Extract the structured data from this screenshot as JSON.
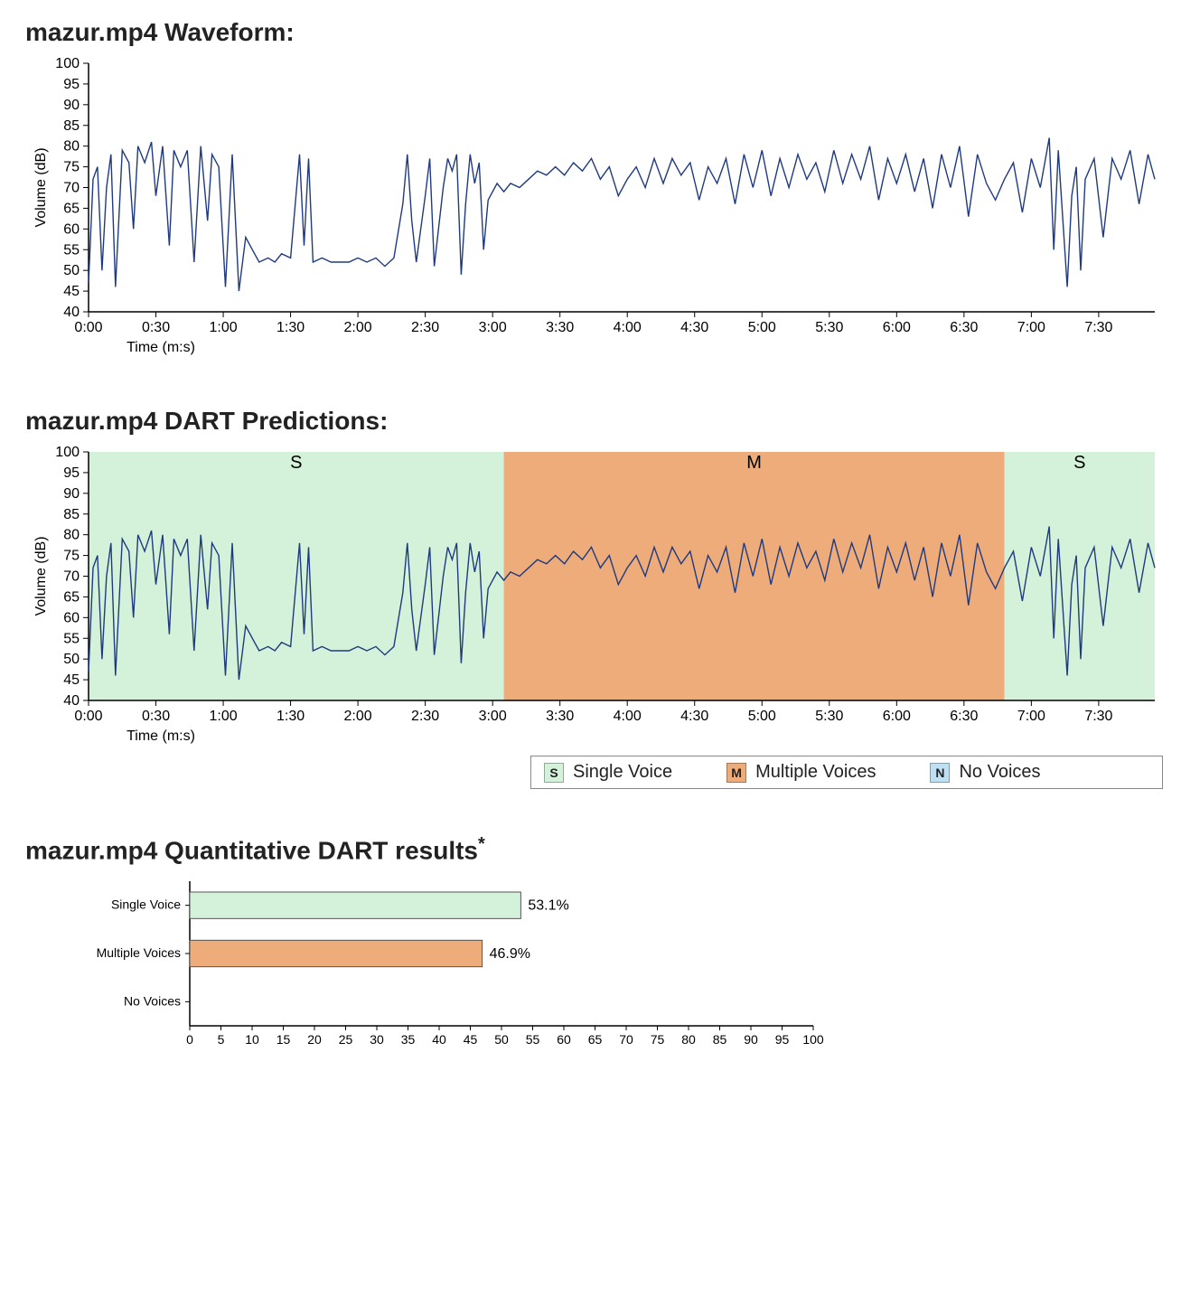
{
  "waveform_chart": {
    "title": "mazur.mp4 Waveform:",
    "type": "line",
    "ylabel": "Volume (dB)",
    "xlabel": "Time (m:s)",
    "ylim": [
      40,
      100
    ],
    "ytick_step": 5,
    "xlim_sec": [
      0,
      475
    ],
    "xticks_sec": [
      0,
      30,
      60,
      90,
      120,
      150,
      180,
      210,
      240,
      270,
      300,
      330,
      360,
      390,
      420,
      450
    ],
    "xtick_labels": [
      "0:00",
      "0:30",
      "1:00",
      "1:30",
      "2:00",
      "2:30",
      "3:00",
      "3:30",
      "4:00",
      "4:30",
      "5:00",
      "5:30",
      "6:00",
      "6:30",
      "7:00",
      "7:30"
    ],
    "line_color": "#1f3a80",
    "line_width": 1.4,
    "axis_color": "#000000",
    "tick_fontsize": 16,
    "label_fontsize": 16,
    "title_fontsize": 28,
    "background_color": "#ffffff"
  },
  "predictions_chart": {
    "title": "mazur.mp4 DART Predictions:",
    "type": "line",
    "ylabel": "Volume (dB)",
    "xlabel": "Time (m:s)",
    "ylim": [
      40,
      100
    ],
    "ytick_step": 5,
    "xlim_sec": [
      0,
      475
    ],
    "xticks_sec": [
      0,
      30,
      60,
      90,
      120,
      150,
      180,
      210,
      240,
      270,
      300,
      330,
      360,
      390,
      420,
      450
    ],
    "xtick_labels": [
      "0:00",
      "0:30",
      "1:00",
      "1:30",
      "2:00",
      "2:30",
      "3:00",
      "3:30",
      "4:00",
      "4:30",
      "5:00",
      "5:30",
      "6:00",
      "6:30",
      "7:00",
      "7:30"
    ],
    "line_color": "#1f3a80",
    "line_width": 1.4,
    "axis_color": "#000000",
    "tick_fontsize": 16,
    "label_fontsize": 16,
    "title_fontsize": 28,
    "background_color": "#ffffff",
    "regions": [
      {
        "label": "S",
        "start_sec": 0,
        "end_sec": 185,
        "fill": "#d4f2d9",
        "text_color": "#000"
      },
      {
        "label": "M",
        "start_sec": 185,
        "end_sec": 408,
        "fill": "#edac7a",
        "text_color": "#000"
      },
      {
        "label": "S",
        "start_sec": 408,
        "end_sec": 475,
        "fill": "#d4f2d9",
        "text_color": "#000"
      }
    ],
    "legend": {
      "items": [
        {
          "swatch_bg": "#d4f2d9",
          "swatch_text": "S",
          "label": "Single Voice"
        },
        {
          "swatch_bg": "#edac7a",
          "swatch_text": "M",
          "label": "Multiple Voices"
        },
        {
          "swatch_bg": "#bfe0f2",
          "swatch_text": "N",
          "label": "No Voices"
        }
      ],
      "border_color": "#888888",
      "fontsize": 20
    }
  },
  "bar_chart": {
    "title": "mazur.mp4 Quantitative DART results",
    "title_sup": "*",
    "type": "bar-horizontal",
    "categories": [
      "Single Voice",
      "Multiple Voices",
      "No Voices"
    ],
    "values": [
      53.1,
      46.9,
      0
    ],
    "value_labels": [
      "53.1%",
      "46.9%",
      ""
    ],
    "bar_colors": [
      "#d4f2d9",
      "#edac7a",
      "#bfe0f2"
    ],
    "bar_border": "#555555",
    "xlim": [
      0,
      100
    ],
    "xtick_step": 5,
    "category_fontsize": 14,
    "tick_fontsize": 14,
    "title_fontsize": 28,
    "value_label_fontsize": 16,
    "bar_height_ratio": 0.55,
    "axis_color": "#000000",
    "background_color": "#ffffff"
  },
  "waveform_data_sec_db": [
    [
      0,
      47
    ],
    [
      2,
      72
    ],
    [
      4,
      75
    ],
    [
      6,
      50
    ],
    [
      8,
      70
    ],
    [
      10,
      78
    ],
    [
      12,
      46
    ],
    [
      15,
      79
    ],
    [
      18,
      76
    ],
    [
      20,
      60
    ],
    [
      22,
      80
    ],
    [
      25,
      76
    ],
    [
      28,
      81
    ],
    [
      30,
      68
    ],
    [
      33,
      80
    ],
    [
      36,
      56
    ],
    [
      38,
      79
    ],
    [
      41,
      75
    ],
    [
      44,
      79
    ],
    [
      47,
      52
    ],
    [
      50,
      80
    ],
    [
      53,
      62
    ],
    [
      55,
      78
    ],
    [
      58,
      75
    ],
    [
      61,
      46
    ],
    [
      64,
      78
    ],
    [
      67,
      45
    ],
    [
      70,
      58
    ],
    [
      73,
      55
    ],
    [
      76,
      52
    ],
    [
      80,
      53
    ],
    [
      83,
      52
    ],
    [
      86,
      54
    ],
    [
      90,
      53
    ],
    [
      94,
      78
    ],
    [
      96,
      56
    ],
    [
      98,
      77
    ],
    [
      100,
      52
    ],
    [
      104,
      53
    ],
    [
      108,
      52
    ],
    [
      112,
      52
    ],
    [
      116,
      52
    ],
    [
      120,
      53
    ],
    [
      124,
      52
    ],
    [
      128,
      53
    ],
    [
      132,
      51
    ],
    [
      136,
      53
    ],
    [
      140,
      66
    ],
    [
      142,
      78
    ],
    [
      144,
      62
    ],
    [
      146,
      52
    ],
    [
      150,
      68
    ],
    [
      152,
      77
    ],
    [
      154,
      51
    ],
    [
      158,
      70
    ],
    [
      160,
      77
    ],
    [
      162,
      74
    ],
    [
      164,
      78
    ],
    [
      166,
      49
    ],
    [
      168,
      66
    ],
    [
      170,
      78
    ],
    [
      172,
      71
    ],
    [
      174,
      76
    ],
    [
      176,
      55
    ],
    [
      178,
      67
    ],
    [
      182,
      71
    ],
    [
      185,
      69
    ],
    [
      188,
      71
    ],
    [
      192,
      70
    ],
    [
      196,
      72
    ],
    [
      200,
      74
    ],
    [
      204,
      73
    ],
    [
      208,
      75
    ],
    [
      212,
      73
    ],
    [
      216,
      76
    ],
    [
      220,
      74
    ],
    [
      224,
      77
    ],
    [
      228,
      72
    ],
    [
      232,
      75
    ],
    [
      236,
      68
    ],
    [
      240,
      72
    ],
    [
      244,
      75
    ],
    [
      248,
      70
    ],
    [
      252,
      77
    ],
    [
      256,
      71
    ],
    [
      260,
      77
    ],
    [
      264,
      73
    ],
    [
      268,
      76
    ],
    [
      272,
      67
    ],
    [
      276,
      75
    ],
    [
      280,
      71
    ],
    [
      284,
      77
    ],
    [
      288,
      66
    ],
    [
      292,
      78
    ],
    [
      296,
      70
    ],
    [
      300,
      79
    ],
    [
      304,
      68
    ],
    [
      308,
      77
    ],
    [
      312,
      70
    ],
    [
      316,
      78
    ],
    [
      320,
      72
    ],
    [
      324,
      76
    ],
    [
      328,
      69
    ],
    [
      332,
      79
    ],
    [
      336,
      71
    ],
    [
      340,
      78
    ],
    [
      344,
      72
    ],
    [
      348,
      80
    ],
    [
      352,
      67
    ],
    [
      356,
      77
    ],
    [
      360,
      71
    ],
    [
      364,
      78
    ],
    [
      368,
      69
    ],
    [
      372,
      77
    ],
    [
      376,
      65
    ],
    [
      380,
      78
    ],
    [
      384,
      70
    ],
    [
      388,
      80
    ],
    [
      392,
      63
    ],
    [
      396,
      78
    ],
    [
      400,
      71
    ],
    [
      404,
      67
    ],
    [
      408,
      72
    ],
    [
      412,
      76
    ],
    [
      416,
      64
    ],
    [
      420,
      77
    ],
    [
      424,
      70
    ],
    [
      428,
      82
    ],
    [
      430,
      55
    ],
    [
      432,
      79
    ],
    [
      436,
      46
    ],
    [
      438,
      68
    ],
    [
      440,
      75
    ],
    [
      442,
      50
    ],
    [
      444,
      72
    ],
    [
      448,
      77
    ],
    [
      452,
      58
    ],
    [
      456,
      77
    ],
    [
      460,
      72
    ],
    [
      464,
      79
    ],
    [
      468,
      66
    ],
    [
      472,
      78
    ],
    [
      475,
      72
    ]
  ]
}
